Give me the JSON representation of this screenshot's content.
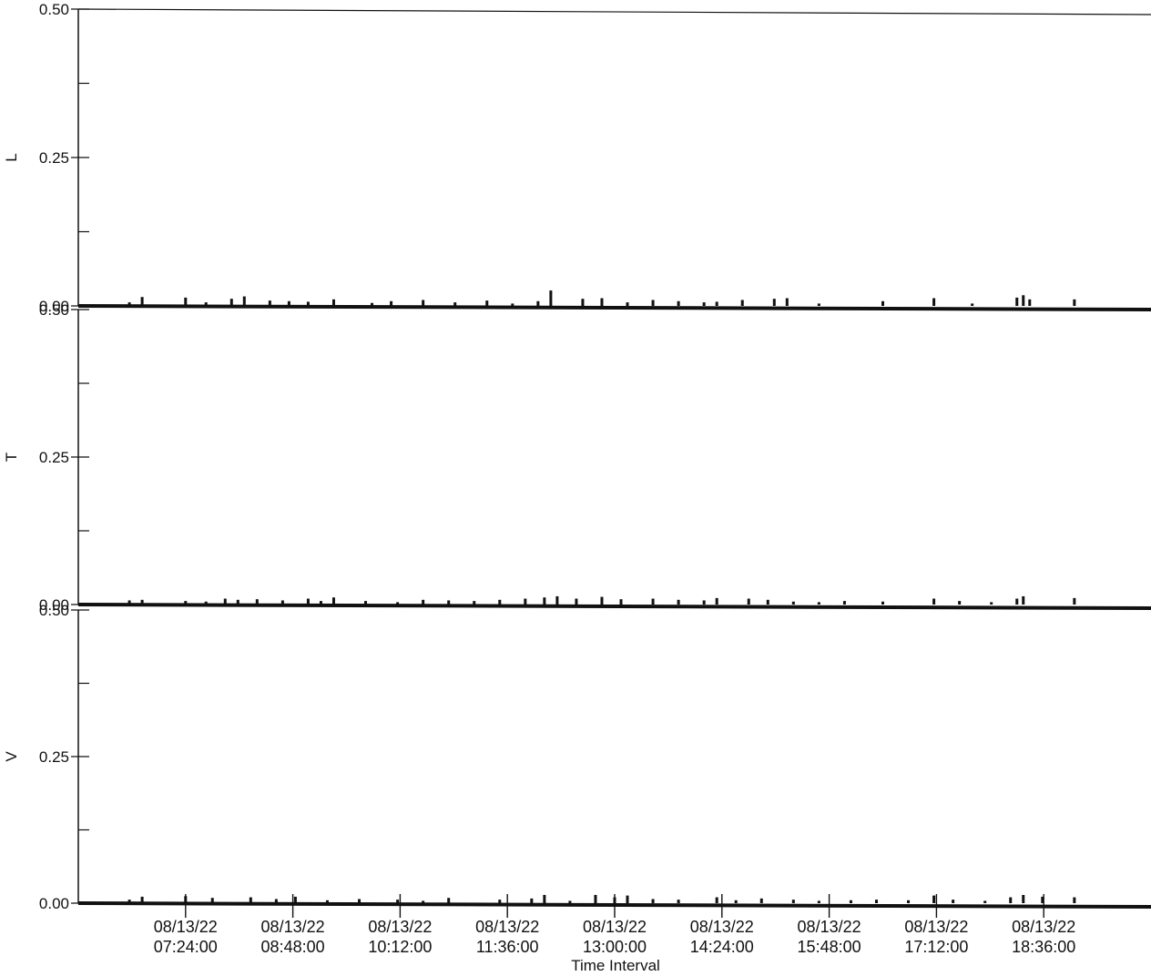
{
  "chart_data": {
    "type": "bar",
    "xlabel": "Time Interval",
    "x_ticks": [
      {
        "date": "08/13/22",
        "time": "07:24:00"
      },
      {
        "date": "08/13/22",
        "time": "08:48:00"
      },
      {
        "date": "08/13/22",
        "time": "10:12:00"
      },
      {
        "date": "08/13/22",
        "time": "11:36:00"
      },
      {
        "date": "08/13/22",
        "time": "13:00:00"
      },
      {
        "date": "08/13/22",
        "time": "14:24:00"
      },
      {
        "date": "08/13/22",
        "time": "15:48:00"
      },
      {
        "date": "08/13/22",
        "time": "17:12:00"
      },
      {
        "date": "08/13/22",
        "time": "18:36:00"
      }
    ],
    "xlim": [
      "08/13/22 06:00:00",
      "08/13/22 20:00:00"
    ],
    "panels": [
      {
        "ylabel": "L",
        "ylim": [
          0,
          0.5
        ],
        "y_ticks": [
          "0.50",
          "0.25",
          "0.00"
        ],
        "series": {
          "times": [
            "06:40",
            "06:50",
            "07:24",
            "07:40",
            "08:00",
            "08:10",
            "08:30",
            "08:45",
            "09:00",
            "09:20",
            "09:50",
            "10:05",
            "10:30",
            "10:55",
            "11:20",
            "11:40",
            "12:00",
            "12:10",
            "12:35",
            "12:50",
            "13:10",
            "13:30",
            "13:50",
            "14:10",
            "14:20",
            "14:40",
            "15:05",
            "15:15",
            "15:40",
            "16:30",
            "17:10",
            "17:40",
            "18:15",
            "18:20",
            "18:25",
            "19:00"
          ],
          "values": [
            0.006,
            0.015,
            0.014,
            0.006,
            0.012,
            0.016,
            0.009,
            0.008,
            0.007,
            0.011,
            0.005,
            0.008,
            0.01,
            0.006,
            0.009,
            0.004,
            0.008,
            0.026,
            0.012,
            0.013,
            0.006,
            0.01,
            0.008,
            0.006,
            0.007,
            0.01,
            0.012,
            0.013,
            0.004,
            0.008,
            0.013,
            0.004,
            0.014,
            0.018,
            0.011,
            0.011
          ]
        }
      },
      {
        "ylabel": "T",
        "ylim": [
          0,
          0.5
        ],
        "y_ticks": [
          "0.50",
          "0.25",
          "0.00"
        ],
        "series": {
          "times": [
            "06:40",
            "06:50",
            "07:24",
            "07:40",
            "07:55",
            "08:05",
            "08:20",
            "08:40",
            "09:00",
            "09:10",
            "09:20",
            "09:45",
            "10:10",
            "10:30",
            "10:50",
            "11:10",
            "11:30",
            "11:50",
            "12:05",
            "12:15",
            "12:30",
            "12:50",
            "13:05",
            "13:30",
            "13:50",
            "14:10",
            "14:20",
            "14:45",
            "15:00",
            "15:20",
            "15:40",
            "16:00",
            "16:30",
            "17:10",
            "17:30",
            "17:55",
            "18:15",
            "18:20",
            "19:00"
          ],
          "values": [
            0.007,
            0.008,
            0.006,
            0.005,
            0.01,
            0.008,
            0.009,
            0.007,
            0.01,
            0.006,
            0.012,
            0.006,
            0.004,
            0.008,
            0.007,
            0.006,
            0.008,
            0.01,
            0.012,
            0.014,
            0.01,
            0.013,
            0.009,
            0.01,
            0.008,
            0.007,
            0.011,
            0.01,
            0.008,
            0.005,
            0.004,
            0.006,
            0.005,
            0.01,
            0.006,
            0.004,
            0.01,
            0.014,
            0.011
          ]
        }
      },
      {
        "ylabel": "V",
        "ylim": [
          0,
          0.5
        ],
        "y_ticks": [
          "0.50",
          "0.25",
          "0.00"
        ],
        "series": {
          "times": [
            "06:40",
            "06:50",
            "07:24",
            "07:45",
            "08:15",
            "08:35",
            "08:50",
            "09:15",
            "09:40",
            "10:10",
            "10:30",
            "10:50",
            "11:30",
            "11:55",
            "12:05",
            "12:25",
            "12:45",
            "13:00",
            "13:10",
            "13:30",
            "13:50",
            "14:20",
            "14:35",
            "14:55",
            "15:20",
            "15:40",
            "16:05",
            "16:25",
            "16:50",
            "17:10",
            "17:25",
            "17:50",
            "18:10",
            "18:20",
            "18:35",
            "19:00"
          ],
          "values": [
            0.006,
            0.011,
            0.012,
            0.009,
            0.01,
            0.007,
            0.011,
            0.005,
            0.007,
            0.006,
            0.004,
            0.009,
            0.006,
            0.008,
            0.014,
            0.004,
            0.014,
            0.01,
            0.013,
            0.007,
            0.006,
            0.01,
            0.005,
            0.008,
            0.006,
            0.004,
            0.005,
            0.006,
            0.005,
            0.013,
            0.006,
            0.004,
            0.01,
            0.014,
            0.011,
            0.01
          ]
        }
      }
    ]
  }
}
